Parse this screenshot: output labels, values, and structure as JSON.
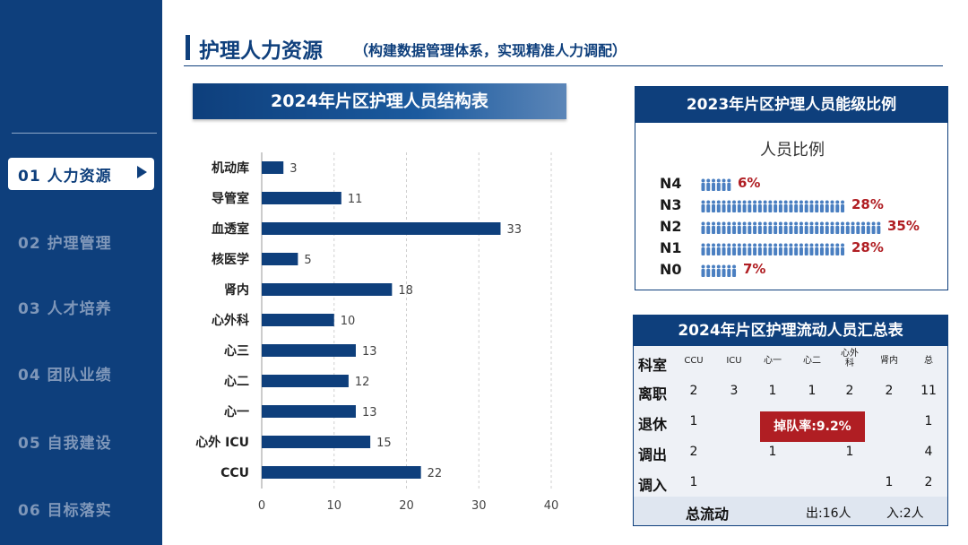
{
  "sidebar": {
    "items": [
      {
        "label": "01  人力资源",
        "active": true
      },
      {
        "label": "02  护理管理"
      },
      {
        "label": "03  人才培养"
      },
      {
        "label": "04  团队业绩"
      },
      {
        "label": "05  自我建设"
      },
      {
        "label": "06  目标落实"
      }
    ]
  },
  "header": {
    "title": "护理人力资源",
    "subtitle": "（构建数据管理体系，实现精准人力调配）"
  },
  "structure_chart": {
    "banner": "2024年片区护理人员结构表"
  },
  "chart_data": {
    "type": "bar",
    "orientation": "horizontal",
    "title": "2024年片区护理人员结构表",
    "categories": [
      "机动库",
      "导管室",
      "血透室",
      "核医学",
      "肾内",
      "心外科",
      "心三",
      "心二",
      "心一",
      "心外 ICU",
      "CCU"
    ],
    "values": [
      3,
      11,
      33,
      5,
      18,
      10,
      13,
      12,
      13,
      15,
      22
    ],
    "xlim": [
      0,
      40
    ],
    "xticks": [
      0,
      10,
      20,
      30,
      40
    ],
    "bar_color": "#0e3f7c",
    "grid": true
  },
  "levels": {
    "title": "2023年片区护理人员能级比例",
    "subtitle": "人员比例",
    "icon": "person-icon",
    "icon_color": "#4a7fc1",
    "rows": [
      {
        "name": "N4",
        "pct": "6%",
        "value": 6
      },
      {
        "name": "N3",
        "pct": "28%",
        "value": 28
      },
      {
        "name": "N2",
        "pct": "35%",
        "value": 35
      },
      {
        "name": "N1",
        "pct": "28%",
        "value": 28
      },
      {
        "name": "N0",
        "pct": "7%",
        "value": 7
      }
    ]
  },
  "flow": {
    "title": "2024年片区护理流动人员汇总表",
    "header_label": "科室",
    "columns": [
      "CCU",
      "ICU",
      "心一",
      "心二",
      "心外科",
      "肾内",
      "总"
    ],
    "rows": [
      {
        "label": "离职",
        "values": [
          "2",
          "3",
          "1",
          "1",
          "2",
          "2",
          "11"
        ]
      },
      {
        "label": "退休",
        "values": [
          "1",
          "",
          "",
          "",
          "",
          "",
          "1"
        ]
      },
      {
        "label": "调出",
        "values": [
          "2",
          "",
          "1",
          "",
          "1",
          "",
          "4"
        ]
      },
      {
        "label": "调入",
        "values": [
          "1",
          "",
          "",
          "",
          "",
          "1",
          "2"
        ]
      }
    ],
    "badge": "掉队率:9.2%",
    "total_label": "总流动",
    "total_out": "出:16人",
    "total_in": "入:2人"
  },
  "colors": {
    "navy": "#0e3f7c",
    "accent_red": "#b01e23"
  }
}
